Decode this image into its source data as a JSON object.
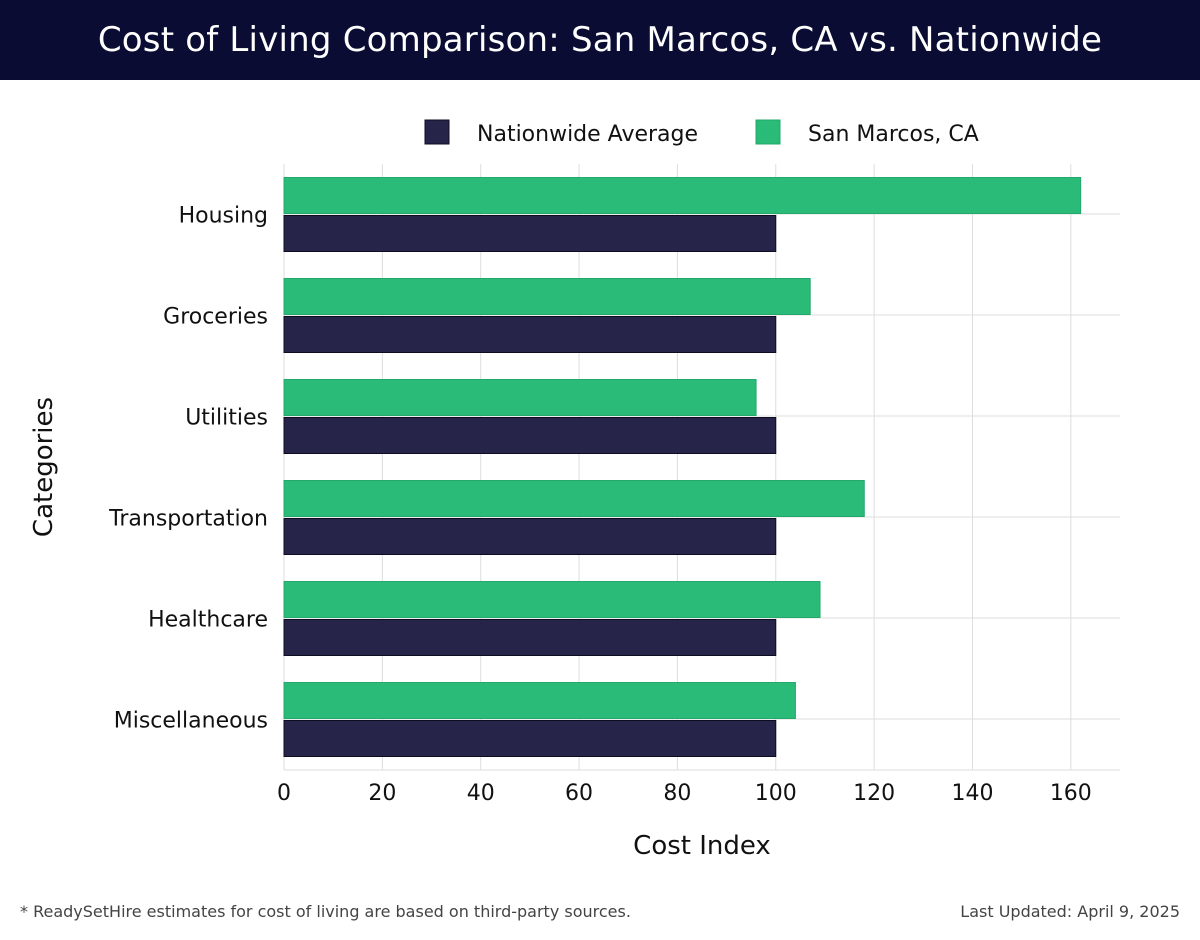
{
  "header": {
    "title": "Cost of Living Comparison: San Marcos, CA vs. Nationwide"
  },
  "chart_data": {
    "type": "bar",
    "orientation": "horizontal",
    "categories": [
      "Housing",
      "Groceries",
      "Utilities",
      "Transportation",
      "Healthcare",
      "Miscellaneous"
    ],
    "series": [
      {
        "name": "Nationwide Average",
        "color": "#262448",
        "values": [
          100,
          100,
          100,
          100,
          100,
          100
        ]
      },
      {
        "name": "San Marcos, CA",
        "color": "#2abb78",
        "values": [
          162,
          107,
          96,
          118,
          109,
          104
        ]
      }
    ],
    "xlabel": "Cost Index",
    "ylabel": "Categories",
    "xlim": [
      0,
      170
    ],
    "xticks": [
      "0",
      "20",
      "40",
      "60",
      "80",
      "100",
      "120",
      "140",
      "160"
    ],
    "grid": true,
    "legend_position": "top"
  },
  "footer": {
    "note": "* ReadySetHire estimates for cost of living are based on third-party sources.",
    "updated": "Last Updated: April 9, 2025"
  }
}
